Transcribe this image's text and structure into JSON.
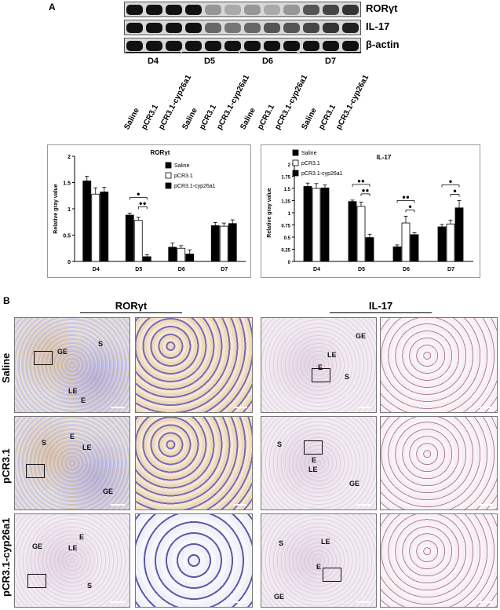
{
  "panel_a": {
    "letter": "A",
    "blots": [
      {
        "label": "RORγt",
        "bands": [
          1,
          1,
          1,
          1,
          0.2,
          0.1,
          0.2,
          0.1,
          0.2,
          0.6,
          0.7,
          0.8
        ]
      },
      {
        "label": "IL-17",
        "bands": [
          1,
          1,
          1,
          1,
          0.5,
          0.4,
          0.5,
          0.6,
          0.6,
          0.7,
          0.8,
          0.9
        ]
      },
      {
        "label": "β-actin",
        "bands": [
          1,
          1,
          1,
          1,
          1,
          1,
          1,
          1,
          1,
          1,
          1,
          1
        ]
      }
    ],
    "days": [
      "D4",
      "D5",
      "D6",
      "D7"
    ],
    "lanes": [
      "Saline",
      "pCR3.1",
      "pCR3.1-cyp26a1"
    ]
  },
  "chart_data": [
    {
      "type": "bar",
      "title": "RORγt",
      "categories": [
        "D4",
        "D5",
        "D6",
        "D7"
      ],
      "series": [
        {
          "name": "Saline",
          "values": [
            1.53,
            0.88,
            0.27,
            0.68
          ],
          "errors": [
            0.09,
            0.04,
            0.08,
            0.06
          ]
        },
        {
          "name": "pCR3.1",
          "values": [
            1.28,
            0.78,
            0.25,
            0.67
          ],
          "errors": [
            0.12,
            0.06,
            0.05,
            0.06
          ]
        },
        {
          "name": "pCR3.1-cyp26a1",
          "values": [
            1.32,
            0.09,
            0.14,
            0.72
          ],
          "errors": [
            0.09,
            0.04,
            0.08,
            0.07
          ]
        }
      ],
      "ylabel": "Relative gray value",
      "ylim": [
        0,
        2
      ],
      "yticks": [
        "0",
        "0.5",
        "1",
        "1.5",
        "2"
      ],
      "legend": "top-right",
      "annotations": [
        {
          "day": "D5",
          "marks": [
            "●",
            "●●"
          ]
        }
      ]
    },
    {
      "type": "bar",
      "title": "IL-17",
      "categories": [
        "D4",
        "D5",
        "D6",
        "D7"
      ],
      "series": [
        {
          "name": "Saline",
          "values": [
            1.54,
            1.23,
            0.3,
            0.71
          ],
          "errors": [
            0.07,
            0.03,
            0.04,
            0.05
          ]
        },
        {
          "name": "pCR3.1",
          "values": [
            1.5,
            1.13,
            0.79,
            0.77
          ],
          "errors": [
            0.1,
            0.09,
            0.14,
            0.08
          ]
        },
        {
          "name": "pCR3.1-cyp26a1",
          "values": [
            1.51,
            0.49,
            0.55,
            1.1
          ],
          "errors": [
            0.06,
            0.07,
            0.04,
            0.15
          ]
        }
      ],
      "ylabel": "Relative gray value",
      "ylim": [
        0,
        2
      ],
      "yticks": [
        "0",
        "0.25",
        "0.5",
        "0.75",
        "1",
        "1.25",
        "1.5",
        "1.75",
        "2"
      ],
      "legend": "top-left",
      "annotations": [
        {
          "day": "D5",
          "marks": [
            "●●",
            "●●"
          ]
        },
        {
          "day": "D6",
          "marks": [
            "●●",
            "●"
          ]
        },
        {
          "day": "D7",
          "marks": [
            "●",
            "●"
          ]
        }
      ]
    }
  ],
  "panel_b": {
    "letter": "B",
    "columns": [
      "RORγt",
      "IL-17"
    ],
    "rows": [
      "Saline",
      "pCR3.1",
      "pCR3.1-cyp26a1"
    ],
    "labels": {
      "r0c0": [
        "GE",
        "S",
        "LE",
        "E"
      ],
      "r0c1": [
        "LE",
        "GE",
        "E",
        "S"
      ],
      "r1c0": [
        "S",
        "E",
        "LE",
        "GE"
      ],
      "r1c1": [
        "S",
        "E",
        "LE",
        "GE"
      ],
      "r2c0": [
        "GE",
        "E",
        "LE",
        "S"
      ],
      "r2c1": [
        "S",
        "LE",
        "E",
        "GE"
      ]
    }
  }
}
